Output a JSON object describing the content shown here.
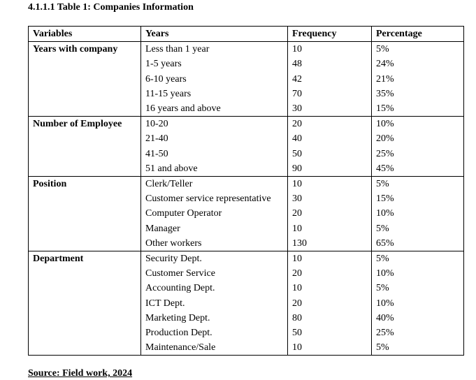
{
  "title": "4.1.1.1 Table 1: Companies Information",
  "table": {
    "headers": [
      "Variables",
      "Years",
      "Frequency",
      "Percentage"
    ],
    "groups": [
      {
        "variable": "Years with company",
        "years": [
          "Less than 1 year",
          "1-5 years",
          "6-10 years",
          "11-15 years",
          "16 years and above"
        ],
        "frequency": [
          "10",
          "48",
          "42",
          "70",
          "30"
        ],
        "percentage": [
          "5%",
          "24%",
          "21%",
          "35%",
          "15%"
        ]
      },
      {
        "variable": "Number of Employee",
        "years": [
          "10-20",
          "21-40",
          "41-50",
          "51 and above"
        ],
        "frequency": [
          "20",
          "40",
          "50",
          "90"
        ],
        "percentage": [
          "10%",
          "20%",
          "25%",
          "45%"
        ]
      },
      {
        "variable": "Position",
        "years": [
          "Clerk/Teller",
          "Customer service representative",
          "Computer Operator",
          "Manager",
          "Other workers"
        ],
        "frequency": [
          "10",
          "30",
          "20",
          "10",
          "130"
        ],
        "percentage": [
          "5%",
          "15%",
          "10%",
          "5%",
          "65%"
        ]
      },
      {
        "variable": "Department",
        "years": [
          "Security Dept.",
          "Customer Service",
          "Accounting Dept.",
          "ICT Dept.",
          "Marketing Dept.",
          "Production Dept.",
          "Maintenance/Sale"
        ],
        "frequency": [
          "10",
          "20",
          "10",
          "20",
          "80",
          "50",
          "10"
        ],
        "percentage": [
          "5%",
          "10%",
          "5%",
          "10%",
          "40%",
          "25%",
          "5%"
        ]
      }
    ]
  },
  "source": "Source: Field work, 2024"
}
